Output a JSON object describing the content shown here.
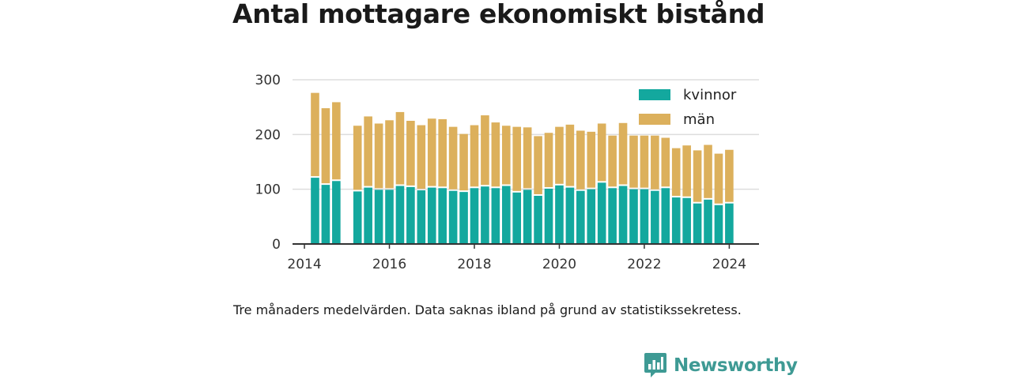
{
  "header": {
    "title": "Antal mottagare ekonomiskt bistånd"
  },
  "footer": {
    "note": "Tre månaders medelvärden. Data saknas ibland på grund av statistikssekretess.",
    "brand": "Newsworthy",
    "brand_color": "#3e9a94"
  },
  "chart_data": {
    "type": "bar",
    "stacked": true,
    "title": "Antal mottagare ekonomiskt bistånd",
    "xlabel": "",
    "ylabel": "",
    "ylim": [
      0,
      300
    ],
    "xlim": [
      2013.72,
      2024.7
    ],
    "yticks": [
      0,
      100,
      200,
      300
    ],
    "xticks": [
      2014,
      2016,
      2018,
      2020,
      2022,
      2024
    ],
    "grid": "horizontal",
    "legend_position": "top-right",
    "x": [
      2014.25,
      2014.5,
      2014.75,
      2015.25,
      2015.5,
      2015.75,
      2016.0,
      2016.25,
      2016.5,
      2016.75,
      2017.0,
      2017.25,
      2017.5,
      2017.75,
      2018.0,
      2018.25,
      2018.5,
      2018.75,
      2019.0,
      2019.25,
      2019.5,
      2019.75,
      2020.0,
      2020.25,
      2020.5,
      2020.75,
      2021.0,
      2021.25,
      2021.5,
      2021.75,
      2022.0,
      2022.25,
      2022.5,
      2022.75,
      2023.0,
      2023.25,
      2023.5,
      2023.75,
      2024.0
    ],
    "series": [
      {
        "name": "kvinnor",
        "color": "#13a89e",
        "values": [
          121,
          108,
          115,
          96,
          103,
          99,
          99,
          106,
          104,
          98,
          103,
          102,
          97,
          95,
          102,
          105,
          102,
          106,
          94,
          99,
          88,
          101,
          107,
          103,
          97,
          100,
          112,
          102,
          106,
          100,
          100,
          97,
          102,
          85,
          84,
          74,
          81,
          71,
          74
        ]
      },
      {
        "name": "män",
        "color": "#dcb05c",
        "values": [
          155,
          140,
          144,
          120,
          130,
          121,
          127,
          135,
          121,
          119,
          126,
          126,
          117,
          106,
          115,
          130,
          120,
          110,
          120,
          114,
          109,
          102,
          107,
          115,
          110,
          105,
          108,
          96,
          115,
          98,
          98,
          101,
          92,
          90,
          96,
          97,
          100,
          94,
          98
        ]
      }
    ]
  }
}
